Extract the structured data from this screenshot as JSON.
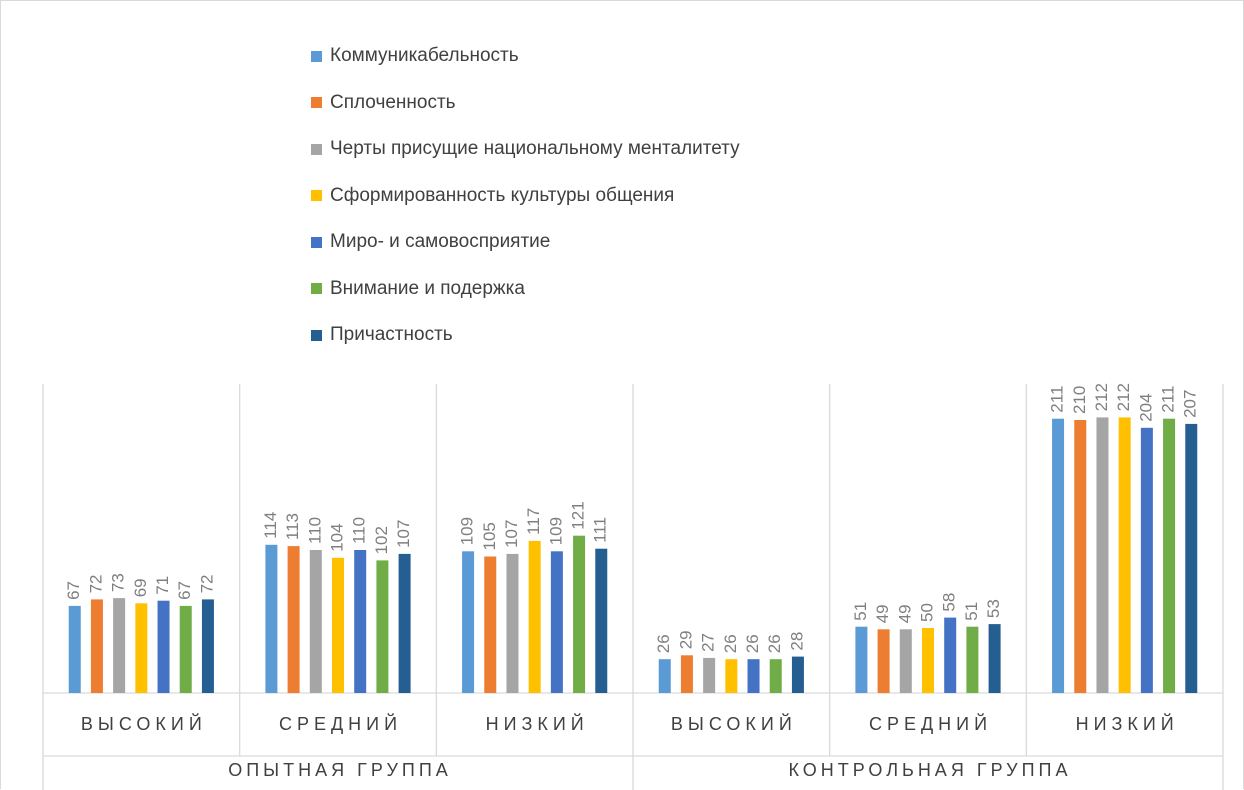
{
  "chart_data": {
    "type": "bar",
    "groups": [
      {
        "label": "ОПЫТНАЯ ГРУППА",
        "categories": [
          "ВЫСОКИЙ",
          "СРЕДНИЙ",
          "НИЗКИЙ"
        ]
      },
      {
        "label": "КОНТРОЛЬНАЯ ГРУППА",
        "categories": [
          "ВЫСОКИЙ",
          "СРЕДНИЙ",
          "НИЗКИЙ"
        ]
      }
    ],
    "categories": [
      "ВЫСОКИЙ",
      "СРЕДНИЙ",
      "НИЗКИЙ",
      "ВЫСОКИЙ",
      "СРЕДНИЙ",
      "НИЗКИЙ"
    ],
    "series": [
      {
        "name": "Коммуникабельность",
        "color": "#5b9bd5",
        "values": [
          67,
          114,
          109,
          26,
          51,
          211
        ]
      },
      {
        "name": "Сплоченность",
        "color": "#ed7d31",
        "values": [
          72,
          113,
          105,
          29,
          49,
          210
        ]
      },
      {
        "name": "Черты присущие национальному менталитету",
        "color": "#a5a5a5",
        "values": [
          73,
          110,
          107,
          27,
          49,
          212
        ]
      },
      {
        "name": "Сформированность культуры общения",
        "color": "#ffc000",
        "values": [
          69,
          104,
          117,
          26,
          50,
          212
        ]
      },
      {
        "name": "Миро- и самовосприятие",
        "color": "#4472c4",
        "values": [
          71,
          110,
          109,
          26,
          58,
          204
        ]
      },
      {
        "name": "Внимание и подержка",
        "color": "#70ad47",
        "values": [
          67,
          102,
          121,
          26,
          51,
          211
        ]
      },
      {
        "name": "Причастность",
        "color": "#255e91",
        "values": [
          72,
          107,
          111,
          28,
          53,
          207
        ]
      }
    ],
    "legend_position": "top",
    "grid": false,
    "ylim": [
      0,
      230
    ]
  }
}
